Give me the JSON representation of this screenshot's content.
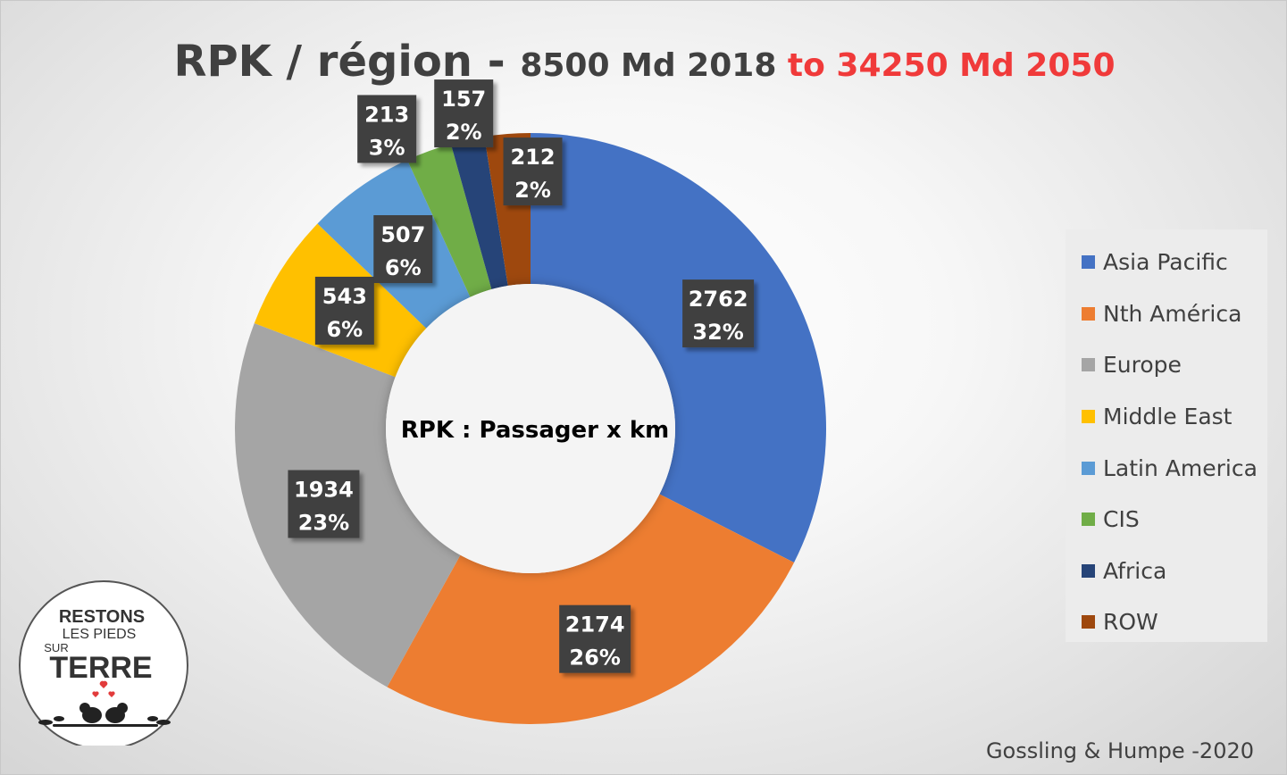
{
  "title": {
    "main": "RPK / région - ",
    "sub": "8500 Md 2018 ",
    "red": "to 34250 Md 2050"
  },
  "chart_data": {
    "type": "pie",
    "subtype": "donut",
    "center_label": "RPK : Passager x km",
    "categories": [
      "Asia Pacific",
      "Nth América",
      "Europe",
      "Middle East",
      "Latin America",
      "CIS",
      "Africa",
      "ROW"
    ],
    "values": [
      2762,
      2174,
      1934,
      543,
      507,
      213,
      157,
      212
    ],
    "percent_labels": [
      "32%",
      "26%",
      "23%",
      "6%",
      "6%",
      "3%",
      "2%",
      "2%"
    ],
    "colors": [
      "#4472c4",
      "#ed7d31",
      "#a5a5a5",
      "#ffc000",
      "#5b9bd5",
      "#70ad47",
      "#264478",
      "#9e480e"
    ],
    "legend_position": "right"
  },
  "source": "Gossling & Humpe -2020",
  "logo": {
    "line1": "RESTONS",
    "line2": "LES PIEDS",
    "line3": "SUR",
    "line4": "TERRE"
  }
}
